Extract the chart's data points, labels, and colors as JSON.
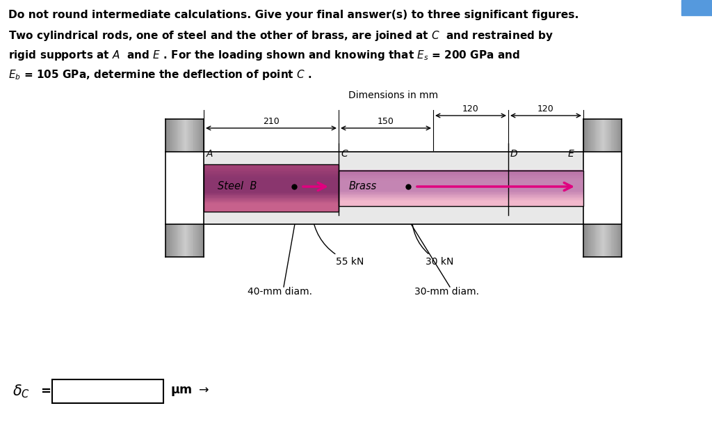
{
  "bg_color": "#ffffff",
  "title_line1": "Do not round intermediate calculations. Give your final answer(s) to three significant figures.",
  "body_line1": "Two cylindrical rods, one of steel and the other of brass, are joined at $C$  and restrained by",
  "body_line2": "rigid supports at $A$  and $E$ . For the loading shown and knowing that $E_s$ = 200 GPa and",
  "body_line3": "$E_b$ = 105 GPa, determine the deflection of point $C$ .",
  "dim_label": "Dimensions in mm",
  "dim_210": "210",
  "dim_150": "150",
  "dim_120a": "120",
  "dim_120b": "120",
  "label_A": "A",
  "label_B": "B",
  "label_C": "C",
  "label_D": "D",
  "label_E": "E",
  "label_steel": "Steel",
  "label_brass": "Brass",
  "force1": "55 kN",
  "force2": "30 kN",
  "diam1": "40-mm diam.",
  "diam2": "30-mm diam.",
  "answer_label": "$\\delta_C$ =",
  "answer_unit": "$\\mu$m →",
  "steel_color_top": "#c06080",
  "steel_color_mid": "#8b2252",
  "steel_color_bot": "#6a1840",
  "brass_color_top": "#e8a0b8",
  "brass_color_mid": "#c87090",
  "brass_color_bot": "#a05070",
  "wall_color_light": "#d8d8d8",
  "wall_color_mid": "#a8a8a8",
  "wall_color_dark": "#787878",
  "arrow_color": "#e0007f",
  "border_color": "#000000",
  "blue_bar": "#5599dd"
}
